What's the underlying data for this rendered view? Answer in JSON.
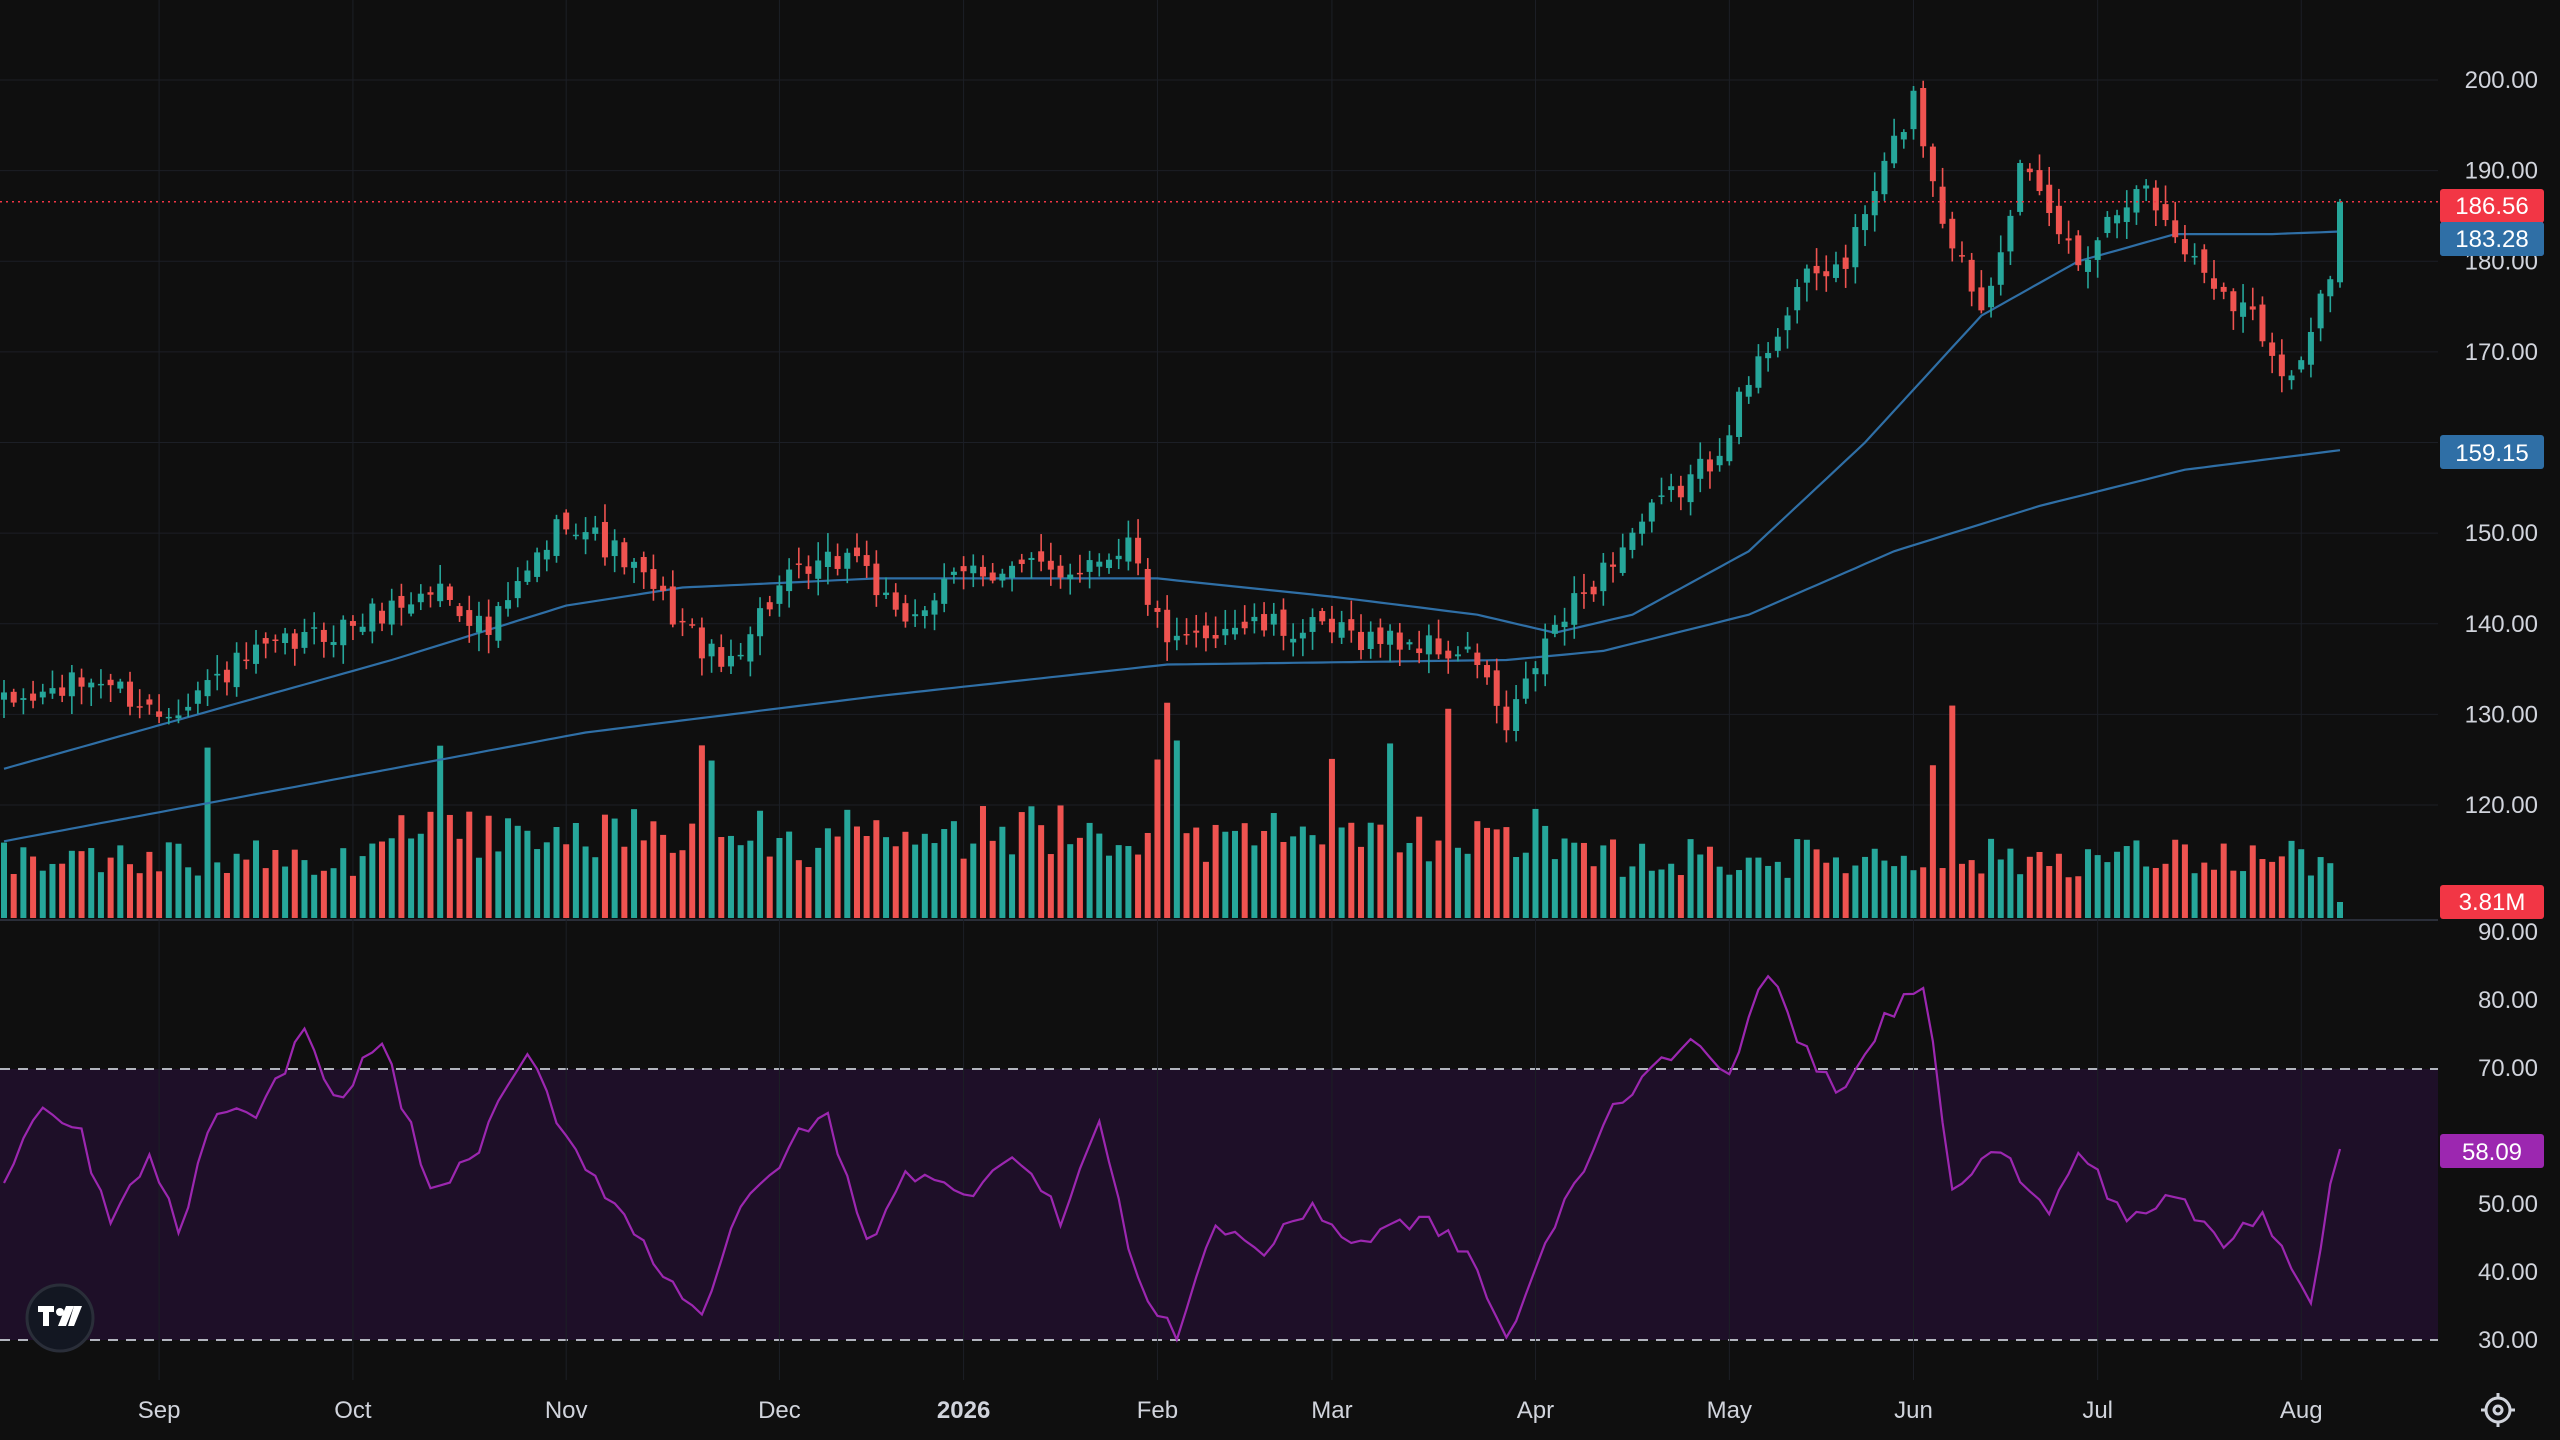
{
  "chart_data": {
    "type": "candlestick",
    "price_axis": {
      "ticks": [
        "200.00",
        "190.00",
        "180.00",
        "170.00",
        "150.00",
        "140.00",
        "130.00",
        "120.00"
      ],
      "tick_values": [
        200,
        190,
        180,
        170,
        150,
        140,
        130,
        120
      ],
      "range": [
        110,
        208
      ]
    },
    "rsi_axis": {
      "ticks": [
        "90.00",
        "80.00",
        "70.00",
        "50.00",
        "40.00",
        "30.00"
      ],
      "tick_values": [
        90,
        80,
        70,
        50,
        40,
        30
      ],
      "range": [
        28,
        92
      ],
      "overbought": 70,
      "oversold": 30
    },
    "x_axis": {
      "labels": [
        {
          "text": "Sep",
          "bold": false
        },
        {
          "text": "Oct",
          "bold": false
        },
        {
          "text": "Nov",
          "bold": false
        },
        {
          "text": "Dec",
          "bold": false
        },
        {
          "text": "2026",
          "bold": true
        },
        {
          "text": "Feb",
          "bold": false
        },
        {
          "text": "Mar",
          "bold": false
        },
        {
          "text": "Apr",
          "bold": false
        },
        {
          "text": "May",
          "bold": false
        },
        {
          "text": "Jun",
          "bold": false
        },
        {
          "text": "Jul",
          "bold": false
        },
        {
          "text": "Aug",
          "bold": false
        }
      ],
      "label_bar_index": [
        16,
        36,
        58,
        80,
        99,
        119,
        137,
        158,
        178,
        197,
        216,
        237
      ]
    },
    "badges": {
      "last_price": "186.56",
      "ma_fast": "183.28",
      "ma_slow": "159.15",
      "volume": "3.81M",
      "rsi": "58.09"
    },
    "anchor_closes": [
      [
        0,
        131
      ],
      [
        10,
        134
      ],
      [
        16,
        130
      ],
      [
        25,
        136
      ],
      [
        36,
        140
      ],
      [
        45,
        144
      ],
      [
        50,
        139
      ],
      [
        58,
        152
      ],
      [
        64,
        147
      ],
      [
        70,
        140
      ],
      [
        74,
        135
      ],
      [
        80,
        144
      ],
      [
        88,
        148
      ],
      [
        92,
        140
      ],
      [
        100,
        146
      ],
      [
        110,
        146
      ],
      [
        116,
        149
      ],
      [
        120,
        137
      ],
      [
        126,
        140
      ],
      [
        137,
        139
      ],
      [
        145,
        138
      ],
      [
        152,
        136
      ],
      [
        155,
        128
      ],
      [
        159,
        138
      ],
      [
        168,
        150
      ],
      [
        176,
        158
      ],
      [
        185,
        177
      ],
      [
        190,
        180
      ],
      [
        197,
        198
      ],
      [
        200,
        185
      ],
      [
        204,
        175
      ],
      [
        208,
        190
      ],
      [
        214,
        180
      ],
      [
        220,
        189
      ],
      [
        226,
        180
      ],
      [
        232,
        174
      ],
      [
        236,
        167
      ],
      [
        240,
        178
      ],
      [
        241,
        186.56
      ]
    ],
    "ma_fast_anchors": [
      [
        0,
        124
      ],
      [
        20,
        130
      ],
      [
        40,
        136
      ],
      [
        58,
        142
      ],
      [
        70,
        144
      ],
      [
        90,
        145
      ],
      [
        119,
        145
      ],
      [
        137,
        143
      ],
      [
        152,
        141
      ],
      [
        160,
        139
      ],
      [
        168,
        141
      ],
      [
        180,
        148
      ],
      [
        192,
        160
      ],
      [
        204,
        174
      ],
      [
        214,
        180
      ],
      [
        224,
        183
      ],
      [
        234,
        183
      ],
      [
        241,
        183.28
      ]
    ],
    "ma_slow_anchors": [
      [
        0,
        116
      ],
      [
        30,
        122
      ],
      [
        60,
        128
      ],
      [
        90,
        132
      ],
      [
        120,
        135.5
      ],
      [
        155,
        136
      ],
      [
        165,
        137
      ],
      [
        180,
        141
      ],
      [
        195,
        148
      ],
      [
        210,
        153
      ],
      [
        225,
        157
      ],
      [
        241,
        159.15
      ]
    ],
    "volume_spike_bars": [
      21,
      45,
      72,
      73,
      119,
      120,
      121,
      137,
      143,
      149,
      199,
      201
    ],
    "rsi_anchors": [
      [
        0,
        53
      ],
      [
        4,
        64
      ],
      [
        8,
        60
      ],
      [
        11,
        47
      ],
      [
        15,
        57
      ],
      [
        18,
        46
      ],
      [
        22,
        64
      ],
      [
        26,
        62
      ],
      [
        31,
        76
      ],
      [
        34,
        65
      ],
      [
        39,
        74
      ],
      [
        44,
        52
      ],
      [
        48,
        56
      ],
      [
        54,
        72
      ],
      [
        58,
        60
      ],
      [
        63,
        50
      ],
      [
        68,
        40
      ],
      [
        72,
        34
      ],
      [
        76,
        49
      ],
      [
        82,
        60
      ],
      [
        85,
        63
      ],
      [
        89,
        44
      ],
      [
        93,
        55
      ],
      [
        99,
        51
      ],
      [
        104,
        58
      ],
      [
        109,
        48
      ],
      [
        113,
        62
      ],
      [
        117,
        38
      ],
      [
        121,
        31
      ],
      [
        125,
        47
      ],
      [
        130,
        43
      ],
      [
        135,
        50
      ],
      [
        139,
        44
      ],
      [
        146,
        48
      ],
      [
        151,
        43
      ],
      [
        155,
        30
      ],
      [
        161,
        50
      ],
      [
        166,
        64
      ],
      [
        171,
        72
      ],
      [
        174,
        73
      ],
      [
        178,
        70
      ],
      [
        182,
        84
      ],
      [
        186,
        72
      ],
      [
        190,
        66
      ],
      [
        194,
        77
      ],
      [
        198,
        83
      ],
      [
        201,
        53
      ],
      [
        206,
        58
      ],
      [
        211,
        48
      ],
      [
        214,
        58
      ],
      [
        219,
        48
      ],
      [
        224,
        51
      ],
      [
        229,
        44
      ],
      [
        233,
        49
      ],
      [
        238,
        36
      ],
      [
        240,
        53
      ],
      [
        241,
        58.09
      ]
    ]
  }
}
